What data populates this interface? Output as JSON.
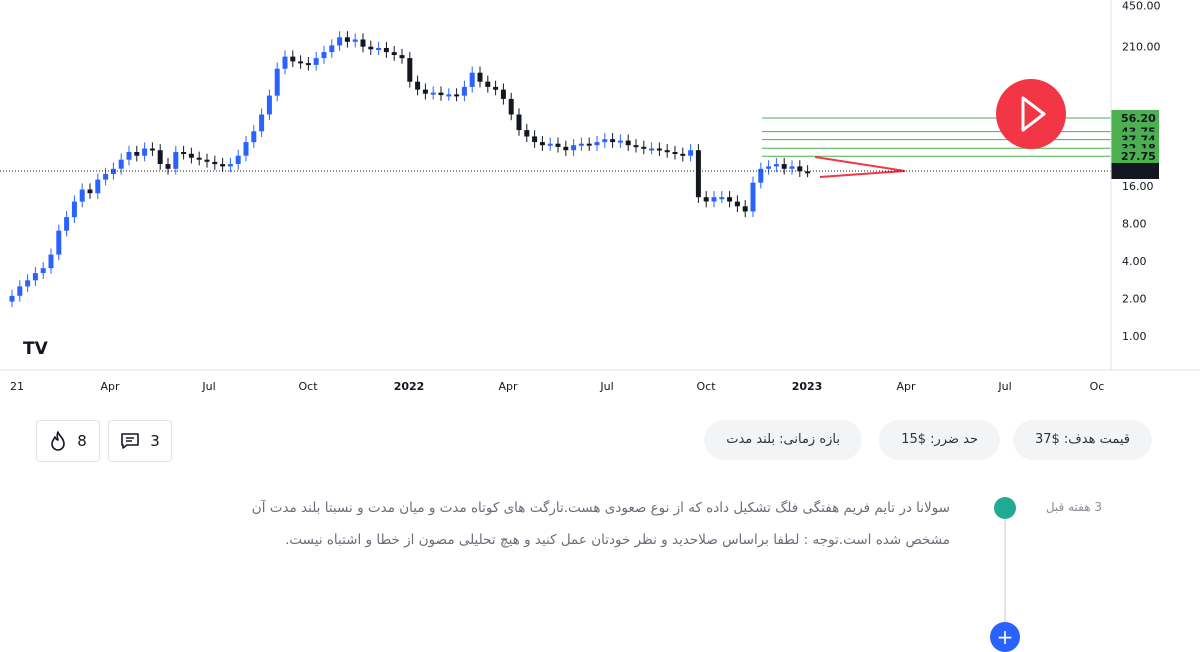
{
  "chart_data": {
    "type": "candlestick",
    "symbol_note": "",
    "y_scale": "log",
    "y_ticks": [
      "450.00",
      "210.00",
      "16.00",
      "8.00",
      "4.00",
      "2.00",
      "1.00"
    ],
    "x_ticks": [
      "21",
      "Apr",
      "Jul",
      "Oct",
      "2022",
      "Apr",
      "Jul",
      "Oct",
      "2023",
      "Apr",
      "Jul",
      "Oc"
    ],
    "bold_x_ticks": [
      "2022",
      "2023"
    ],
    "current_price": "20.94",
    "target_levels": [
      {
        "label": "56.20",
        "value": 56.2,
        "color": "#4caf50"
      },
      {
        "label": "43.75",
        "value": 43.75,
        "color": "#4caf50"
      },
      {
        "label": "37.74",
        "value": 37.74,
        "color": "#4caf50"
      },
      {
        "label": "32.18",
        "value": 32.18,
        "color": "#4caf50"
      },
      {
        "label": "27.75",
        "value": 27.75,
        "color": "#4caf50"
      }
    ],
    "colors": {
      "up": "#2962ff",
      "down": "#131722",
      "levels": "#4caf50",
      "pattern": "#f23645"
    },
    "weekly_closes": [
      2.1,
      2.5,
      2.8,
      3.2,
      3.5,
      4.5,
      7,
      9,
      12,
      15,
      14,
      18,
      20,
      22,
      26,
      30,
      28,
      32,
      31,
      24,
      22,
      30,
      29,
      27,
      26,
      25,
      24,
      23,
      24,
      28,
      36,
      44,
      60,
      85,
      140,
      175,
      160,
      155,
      150,
      170,
      190,
      215,
      250,
      230,
      240,
      210,
      200,
      205,
      190,
      180,
      170,
      110,
      95,
      88,
      90,
      86,
      87,
      85,
      100,
      130,
      110,
      100,
      95,
      80,
      60,
      45,
      40,
      36,
      34,
      35,
      33,
      31,
      34,
      35,
      34,
      36,
      38,
      36,
      37,
      34,
      33,
      32,
      32,
      31,
      30,
      29,
      28,
      31,
      13,
      12,
      13,
      13,
      12,
      11,
      10,
      17,
      22,
      23,
      24,
      22,
      23,
      21,
      20.9
    ],
    "annotation": "flag"
  },
  "logo": "TV",
  "play_icon": "play-icon",
  "tags": {
    "target": "قیمت هدف: $37",
    "stop": "حد ضرر: $15",
    "timeframe": "بازه زمانی: بلند مدت"
  },
  "stats": {
    "likes": "8",
    "comments": "3"
  },
  "post": {
    "time": "3 هفته قبل",
    "text": "سولانا در تایم فریم هفتگی فلگ تشکیل داده که از نوع صعودی هست.تارگت های کوتاه مدت و میان مدت و نسبتا بلند مدت آن مشخص شده است.توجه : لطفا براساس صلاحدید و نظر خودتان عمل کنید و هیچ تحلیلی مصون از خطا و اشتباه نیست."
  },
  "icons": {
    "fire": "fire-icon",
    "comment": "comment-icon",
    "add": "plus-icon"
  }
}
